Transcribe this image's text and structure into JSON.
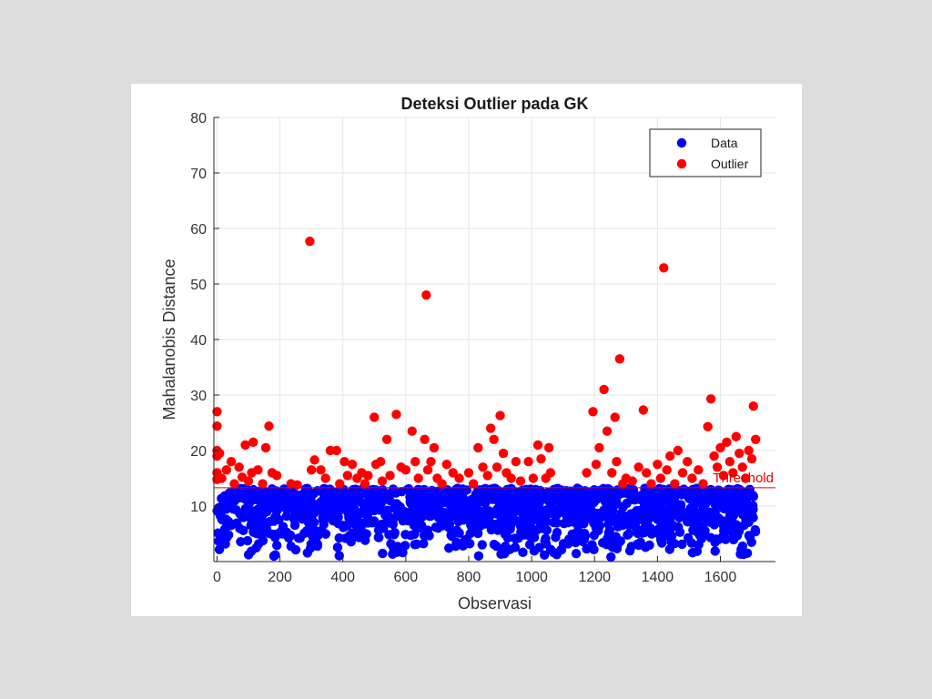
{
  "chart_data": {
    "type": "scatter",
    "title": "Deteksi Outlier pada GK",
    "xlabel": "Observasi",
    "ylabel": "Mahalanobis Distance",
    "xlim": [
      -10,
      1775
    ],
    "ylim": [
      0,
      80
    ],
    "xticks": [
      0,
      200,
      400,
      600,
      800,
      1000,
      1200,
      1400,
      1600
    ],
    "yticks": [
      10,
      20,
      30,
      40,
      50,
      60,
      70,
      80
    ],
    "grid": true,
    "legend_position": "top-right",
    "threshold": {
      "value": 13.3,
      "label": "Threshold",
      "color": "#e60000"
    },
    "series": [
      {
        "name": "Data",
        "color": "#0000ff",
        "n_points": 1400,
        "x_range": [
          0,
          1712
        ],
        "y_range": [
          0.5,
          13.2
        ],
        "note": "dense band of inlier observations"
      },
      {
        "name": "Outlier",
        "color": "#ff0000",
        "points": [
          [
            0,
            27
          ],
          [
            0,
            24.4
          ],
          [
            0,
            20
          ],
          [
            0,
            19
          ],
          [
            0,
            16
          ],
          [
            0,
            14.8
          ],
          [
            8,
            19.5
          ],
          [
            15,
            15
          ],
          [
            30,
            16.5
          ],
          [
            45,
            18
          ],
          [
            55,
            14
          ],
          [
            70,
            17
          ],
          [
            80,
            15.2
          ],
          [
            90,
            21
          ],
          [
            100,
            14.5
          ],
          [
            110,
            16
          ],
          [
            115,
            21.5
          ],
          [
            130,
            16.5
          ],
          [
            145,
            14
          ],
          [
            155,
            20.5
          ],
          [
            165,
            24.4
          ],
          [
            175,
            16
          ],
          [
            190,
            15.5
          ],
          [
            235,
            14
          ],
          [
            255,
            13.8
          ],
          [
            295,
            57.7
          ],
          [
            300,
            16.5
          ],
          [
            310,
            18.3
          ],
          [
            330,
            16.5
          ],
          [
            345,
            15
          ],
          [
            360,
            20
          ],
          [
            380,
            20
          ],
          [
            390,
            14
          ],
          [
            405,
            18
          ],
          [
            415,
            15.5
          ],
          [
            430,
            17.5
          ],
          [
            445,
            15
          ],
          [
            460,
            16
          ],
          [
            470,
            14
          ],
          [
            480,
            15.5
          ],
          [
            500,
            26
          ],
          [
            505,
            17.5
          ],
          [
            520,
            18
          ],
          [
            525,
            14.5
          ],
          [
            540,
            22
          ],
          [
            550,
            15.5
          ],
          [
            570,
            26.5
          ],
          [
            585,
            17
          ],
          [
            600,
            16.5
          ],
          [
            620,
            23.5
          ],
          [
            630,
            18
          ],
          [
            640,
            15
          ],
          [
            660,
            22
          ],
          [
            665,
            48
          ],
          [
            670,
            16.5
          ],
          [
            680,
            18
          ],
          [
            690,
            20.5
          ],
          [
            700,
            15
          ],
          [
            715,
            14
          ],
          [
            730,
            17.5
          ],
          [
            750,
            16
          ],
          [
            770,
            15
          ],
          [
            800,
            16
          ],
          [
            815,
            14
          ],
          [
            830,
            20.5
          ],
          [
            845,
            17
          ],
          [
            860,
            15.5
          ],
          [
            870,
            24
          ],
          [
            880,
            22
          ],
          [
            890,
            17
          ],
          [
            900,
            26.3
          ],
          [
            910,
            19.5
          ],
          [
            920,
            16
          ],
          [
            935,
            15
          ],
          [
            950,
            18
          ],
          [
            965,
            14.5
          ],
          [
            990,
            18
          ],
          [
            1005,
            15
          ],
          [
            1020,
            21
          ],
          [
            1030,
            18.5
          ],
          [
            1045,
            15
          ],
          [
            1055,
            20.5
          ],
          [
            1060,
            16
          ],
          [
            1175,
            16
          ],
          [
            1195,
            27
          ],
          [
            1205,
            17.5
          ],
          [
            1215,
            20.5
          ],
          [
            1230,
            31
          ],
          [
            1240,
            23.5
          ],
          [
            1255,
            16
          ],
          [
            1265,
            26
          ],
          [
            1270,
            18
          ],
          [
            1280,
            36.5
          ],
          [
            1290,
            14
          ],
          [
            1300,
            15
          ],
          [
            1320,
            14.5
          ],
          [
            1340,
            17
          ],
          [
            1355,
            27.3
          ],
          [
            1365,
            16
          ],
          [
            1380,
            14
          ],
          [
            1400,
            17.5
          ],
          [
            1410,
            15
          ],
          [
            1420,
            52.9
          ],
          [
            1430,
            16.5
          ],
          [
            1440,
            19
          ],
          [
            1455,
            14
          ],
          [
            1465,
            20
          ],
          [
            1480,
            16
          ],
          [
            1495,
            18
          ],
          [
            1510,
            15
          ],
          [
            1530,
            16.5
          ],
          [
            1545,
            14
          ],
          [
            1560,
            24.3
          ],
          [
            1570,
            29.3
          ],
          [
            1580,
            19
          ],
          [
            1590,
            17
          ],
          [
            1600,
            20.5
          ],
          [
            1610,
            15.5
          ],
          [
            1620,
            21.5
          ],
          [
            1630,
            18
          ],
          [
            1640,
            16
          ],
          [
            1650,
            22.5
          ],
          [
            1660,
            19.5
          ],
          [
            1670,
            17
          ],
          [
            1680,
            15
          ],
          [
            1690,
            20
          ],
          [
            1700,
            18.5
          ],
          [
            1705,
            28
          ],
          [
            1712,
            22
          ]
        ]
      }
    ]
  }
}
